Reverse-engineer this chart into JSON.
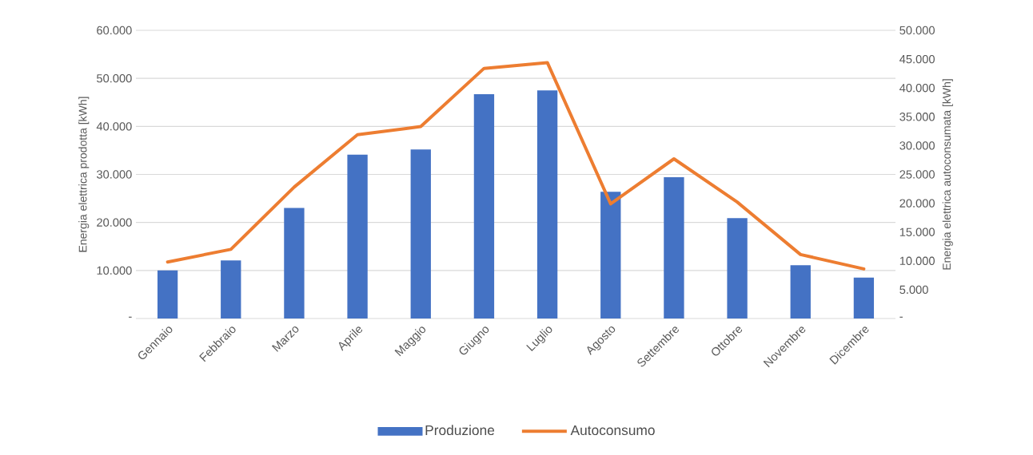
{
  "chart_data": {
    "type": "bar",
    "categories": [
      "Gennaio",
      "Febbraio",
      "Marzo",
      "Aprile",
      "Maggio",
      "Giugno",
      "Luglio",
      "Agosto",
      "Settembre",
      "Ottobre",
      "Novembre",
      "Dicembre"
    ],
    "series": [
      {
        "name": "Produzione",
        "color": "#4472c4",
        "values": [
          10000,
          12100,
          23000,
          34100,
          35200,
          46700,
          47500,
          26400,
          29400,
          20900,
          11100,
          8500
        ]
      },
      {
        "name": "Autoconsumo",
        "type": "line",
        "axis": "y2",
        "color": "#ed7d31",
        "values": [
          9800,
          12000,
          22800,
          31900,
          33300,
          43400,
          44400,
          19900,
          27700,
          20200,
          11100,
          8600
        ]
      }
    ],
    "ylabel": "Energia elettrica prodotta [kWh]",
    "y2label": "Energia elettrica autoconsumata [kWh]",
    "ylim": [
      0,
      60000
    ],
    "yticks": [
      {
        "value": 0,
        "label": "-"
      },
      {
        "value": 10000,
        "label": "10.000"
      },
      {
        "value": 20000,
        "label": "20.000"
      },
      {
        "value": 30000,
        "label": "30.000"
      },
      {
        "value": 40000,
        "label": "40.000"
      },
      {
        "value": 50000,
        "label": "50.000"
      },
      {
        "value": 60000,
        "label": "60.000"
      }
    ],
    "y2lim": [
      0,
      50000
    ],
    "y2ticks": [
      {
        "value": 0,
        "label": "-"
      },
      {
        "value": 5000,
        "label": "5.000"
      },
      {
        "value": 10000,
        "label": "10.000"
      },
      {
        "value": 15000,
        "label": "15.000"
      },
      {
        "value": 20000,
        "label": "20.000"
      },
      {
        "value": 25000,
        "label": "25.000"
      },
      {
        "value": 30000,
        "label": "30.000"
      },
      {
        "value": 35000,
        "label": "35.000"
      },
      {
        "value": 40000,
        "label": "40.000"
      },
      {
        "value": 45000,
        "label": "45.000"
      },
      {
        "value": 50000,
        "label": "50.000"
      }
    ],
    "grid": "y",
    "legend": "bottom"
  }
}
